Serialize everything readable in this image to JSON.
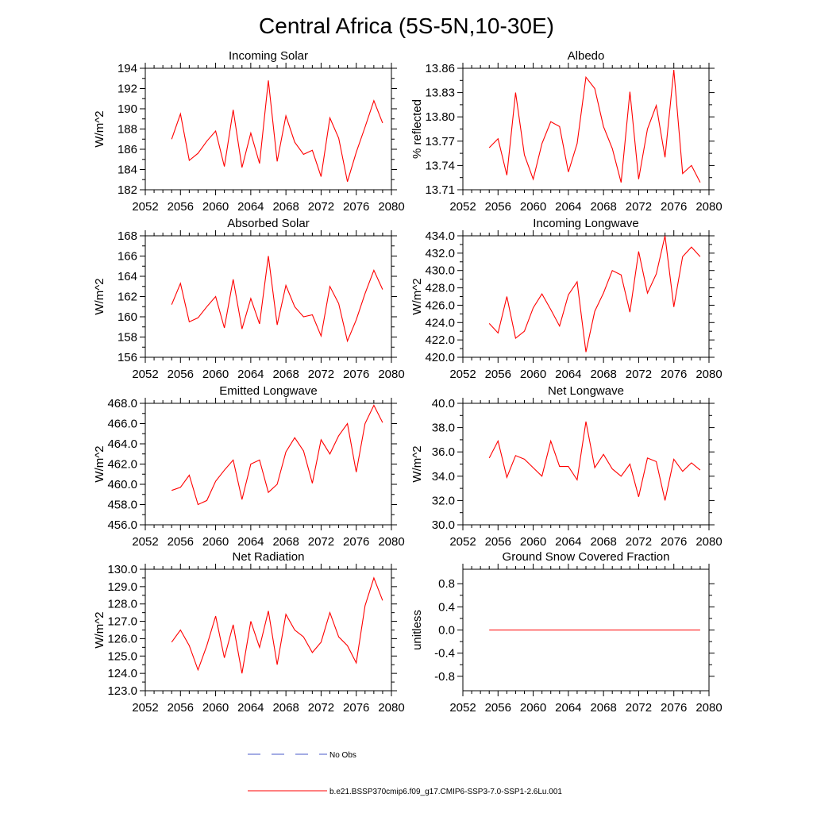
{
  "title": "Central Africa (5S-5N,10-30E)",
  "colors": {
    "model": "#ff0000",
    "obs": "#4a5ac8",
    "axis": "#000000"
  },
  "legend": {
    "obs_label": "No Obs",
    "model_label": "b.e21.BSSP370cmip6.f09_g17.CMIP6-SSP3-7.0-SSP1-2.6Lu.001"
  },
  "chart_data": [
    {
      "type": "line",
      "title": "Incoming Solar",
      "ylabel": "W/m^2",
      "xlim": [
        2052,
        2080
      ],
      "ylim": [
        182,
        194
      ],
      "xticks": [
        2052,
        2056,
        2060,
        2064,
        2068,
        2072,
        2076,
        2080
      ],
      "yticks": [
        182,
        184,
        186,
        188,
        190,
        192,
        194
      ],
      "ytick_labels": [
        "182",
        "184",
        "186",
        "188",
        "190",
        "192",
        "194"
      ],
      "x": [
        2055,
        2056,
        2057,
        2058,
        2059,
        2060,
        2061,
        2062,
        2063,
        2064,
        2065,
        2066,
        2067,
        2068,
        2069,
        2070,
        2071,
        2072,
        2073,
        2074,
        2075,
        2076,
        2077,
        2078,
        2079
      ],
      "values": [
        187.0,
        189.5,
        184.9,
        185.6,
        186.8,
        187.8,
        184.3,
        189.9,
        184.2,
        187.6,
        184.6,
        192.8,
        184.8,
        189.3,
        186.7,
        185.5,
        185.9,
        183.3,
        189.1,
        187.1,
        182.8,
        185.7,
        188.2,
        190.8,
        188.6
      ]
    },
    {
      "type": "line",
      "title": "Albedo",
      "ylabel": "% reflected",
      "xlim": [
        2052,
        2080
      ],
      "ylim": [
        13.71,
        13.86
      ],
      "xticks": [
        2052,
        2056,
        2060,
        2064,
        2068,
        2072,
        2076,
        2080
      ],
      "yticks": [
        13.71,
        13.74,
        13.77,
        13.8,
        13.83,
        13.86
      ],
      "ytick_labels": [
        "13.71",
        "13.74",
        "13.77",
        "13.80",
        "13.83",
        "13.86"
      ],
      "x": [
        2055,
        2056,
        2057,
        2058,
        2059,
        2060,
        2061,
        2062,
        2063,
        2064,
        2065,
        2066,
        2067,
        2068,
        2069,
        2070,
        2071,
        2072,
        2073,
        2074,
        2075,
        2076,
        2077,
        2078,
        2079
      ],
      "values": [
        13.762,
        13.773,
        13.728,
        13.83,
        13.753,
        13.723,
        13.767,
        13.794,
        13.788,
        13.732,
        13.767,
        13.849,
        13.835,
        13.788,
        13.761,
        13.719,
        13.831,
        13.723,
        13.785,
        13.814,
        13.75,
        13.858,
        13.73,
        13.74,
        13.719
      ]
    },
    {
      "type": "line",
      "title": "Absorbed Solar",
      "ylabel": "W/m^2",
      "xlim": [
        2052,
        2080
      ],
      "ylim": [
        156,
        168
      ],
      "xticks": [
        2052,
        2056,
        2060,
        2064,
        2068,
        2072,
        2076,
        2080
      ],
      "yticks": [
        156,
        158,
        160,
        162,
        164,
        166,
        168
      ],
      "ytick_labels": [
        "156",
        "158",
        "160",
        "162",
        "164",
        "166",
        "168"
      ],
      "x": [
        2055,
        2056,
        2057,
        2058,
        2059,
        2060,
        2061,
        2062,
        2063,
        2064,
        2065,
        2066,
        2067,
        2068,
        2069,
        2070,
        2071,
        2072,
        2073,
        2074,
        2075,
        2076,
        2077,
        2078,
        2079
      ],
      "values": [
        161.2,
        163.3,
        159.5,
        159.9,
        161.0,
        162.0,
        158.9,
        163.7,
        158.8,
        161.8,
        159.3,
        166.0,
        159.2,
        163.1,
        161.0,
        160.0,
        160.2,
        158.1,
        163.0,
        161.3,
        157.6,
        159.7,
        162.3,
        164.6,
        162.7
      ]
    },
    {
      "type": "line",
      "title": "Incoming Longwave",
      "ylabel": "W/m^2",
      "xlim": [
        2052,
        2080
      ],
      "ylim": [
        420.0,
        434.0
      ],
      "xticks": [
        2052,
        2056,
        2060,
        2064,
        2068,
        2072,
        2076,
        2080
      ],
      "yticks": [
        420.0,
        422.0,
        424.0,
        426.0,
        428.0,
        430.0,
        432.0,
        434.0
      ],
      "ytick_labels": [
        "420.0",
        "422.0",
        "424.0",
        "426.0",
        "428.0",
        "430.0",
        "432.0",
        "434.0"
      ],
      "x": [
        2055,
        2056,
        2057,
        2058,
        2059,
        2060,
        2061,
        2062,
        2063,
        2064,
        2065,
        2066,
        2067,
        2068,
        2069,
        2070,
        2071,
        2072,
        2073,
        2074,
        2075,
        2076,
        2077,
        2078,
        2079
      ],
      "values": [
        423.9,
        422.8,
        427.0,
        422.2,
        423.0,
        425.7,
        427.3,
        425.5,
        423.6,
        427.2,
        428.7,
        420.6,
        425.3,
        427.4,
        430.0,
        429.5,
        425.2,
        432.2,
        427.4,
        429.6,
        434.0,
        425.8,
        431.6,
        432.7,
        431.6
      ]
    },
    {
      "type": "line",
      "title": "Emitted Longwave",
      "ylabel": "W/m^2",
      "xlim": [
        2052,
        2080
      ],
      "ylim": [
        456.0,
        468.0
      ],
      "xticks": [
        2052,
        2056,
        2060,
        2064,
        2068,
        2072,
        2076,
        2080
      ],
      "yticks": [
        456.0,
        458.0,
        460.0,
        462.0,
        464.0,
        466.0,
        468.0
      ],
      "ytick_labels": [
        "456.0",
        "458.0",
        "460.0",
        "462.0",
        "464.0",
        "466.0",
        "468.0"
      ],
      "x": [
        2055,
        2056,
        2057,
        2058,
        2059,
        2060,
        2061,
        2062,
        2063,
        2064,
        2065,
        2066,
        2067,
        2068,
        2069,
        2070,
        2071,
        2072,
        2073,
        2074,
        2075,
        2076,
        2077,
        2078,
        2079
      ],
      "values": [
        459.4,
        459.7,
        460.9,
        458.0,
        458.4,
        460.3,
        461.4,
        462.4,
        458.5,
        462.0,
        462.4,
        459.2,
        460.0,
        463.2,
        464.6,
        463.3,
        460.1,
        464.4,
        463.0,
        464.8,
        466.0,
        461.2,
        466.0,
        467.8,
        466.1
      ]
    },
    {
      "type": "line",
      "title": "Net Longwave",
      "ylabel": "W/m^2",
      "xlim": [
        2052,
        2080
      ],
      "ylim": [
        30.0,
        40.0
      ],
      "xticks": [
        2052,
        2056,
        2060,
        2064,
        2068,
        2072,
        2076,
        2080
      ],
      "yticks": [
        30.0,
        32.0,
        34.0,
        36.0,
        38.0,
        40.0
      ],
      "ytick_labels": [
        "30.0",
        "32.0",
        "34.0",
        "36.0",
        "38.0",
        "40.0"
      ],
      "x": [
        2055,
        2056,
        2057,
        2058,
        2059,
        2060,
        2061,
        2062,
        2063,
        2064,
        2065,
        2066,
        2067,
        2068,
        2069,
        2070,
        2071,
        2072,
        2073,
        2074,
        2075,
        2076,
        2077,
        2078,
        2079
      ],
      "values": [
        35.5,
        36.9,
        33.9,
        35.7,
        35.4,
        34.7,
        34.0,
        36.9,
        34.8,
        34.8,
        33.7,
        38.5,
        34.7,
        35.8,
        34.6,
        34.0,
        35.0,
        32.3,
        35.5,
        35.2,
        32.0,
        35.4,
        34.4,
        35.1,
        34.5
      ]
    },
    {
      "type": "line",
      "title": "Net Radiation",
      "ylabel": "W/m^2",
      "xlim": [
        2052,
        2080
      ],
      "ylim": [
        123.0,
        130.0
      ],
      "xticks": [
        2052,
        2056,
        2060,
        2064,
        2068,
        2072,
        2076,
        2080
      ],
      "yticks": [
        123.0,
        124.0,
        125.0,
        126.0,
        127.0,
        128.0,
        129.0,
        130.0
      ],
      "ytick_labels": [
        "123.0",
        "124.0",
        "125.0",
        "126.0",
        "127.0",
        "128.0",
        "129.0",
        "130.0"
      ],
      "x": [
        2055,
        2056,
        2057,
        2058,
        2059,
        2060,
        2061,
        2062,
        2063,
        2064,
        2065,
        2066,
        2067,
        2068,
        2069,
        2070,
        2071,
        2072,
        2073,
        2074,
        2075,
        2076,
        2077,
        2078,
        2079
      ],
      "values": [
        125.8,
        126.5,
        125.6,
        124.2,
        125.6,
        127.3,
        124.9,
        126.8,
        124.0,
        127.0,
        125.5,
        127.6,
        124.5,
        127.4,
        126.5,
        126.1,
        125.2,
        125.8,
        127.5,
        126.1,
        125.6,
        124.6,
        127.9,
        129.5,
        128.2
      ]
    },
    {
      "type": "line",
      "title": "Ground Snow Covered Fraction",
      "ylabel": "unitless",
      "xlim": [
        2052,
        2080
      ],
      "ylim": [
        -1.05,
        1.05
      ],
      "xticks": [
        2052,
        2056,
        2060,
        2064,
        2068,
        2072,
        2076,
        2080
      ],
      "yticks": [
        -0.8,
        -0.4,
        0.0,
        0.4,
        0.8
      ],
      "ytick_labels": [
        "-0.8",
        "-0.4",
        "0.0",
        "0.4",
        "0.8"
      ],
      "x": [
        2055,
        2056,
        2057,
        2058,
        2059,
        2060,
        2061,
        2062,
        2063,
        2064,
        2065,
        2066,
        2067,
        2068,
        2069,
        2070,
        2071,
        2072,
        2073,
        2074,
        2075,
        2076,
        2077,
        2078,
        2079
      ],
      "values": [
        0,
        0,
        0,
        0,
        0,
        0,
        0,
        0,
        0,
        0,
        0,
        0,
        0,
        0,
        0,
        0,
        0,
        0,
        0,
        0,
        0,
        0,
        0,
        0,
        0
      ]
    }
  ]
}
